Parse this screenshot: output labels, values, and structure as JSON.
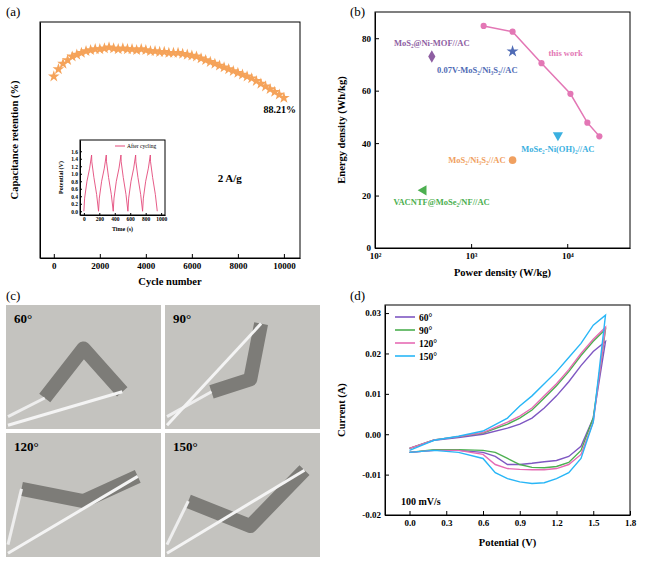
{
  "chart_data": [
    {
      "type": "scatter",
      "panel": "(a)",
      "x_label": "Cycle number",
      "y_label": "Capacitance retention (%)",
      "x": [
        0,
        200,
        400,
        600,
        800,
        1000,
        1200,
        1400,
        1600,
        1800,
        2000,
        2200,
        2400,
        2600,
        2800,
        3000,
        3200,
        3400,
        3600,
        3800,
        4000,
        4200,
        4400,
        4600,
        4800,
        5000,
        5200,
        5400,
        5600,
        5800,
        6000,
        6200,
        6400,
        6600,
        6800,
        7000,
        7200,
        7400,
        7600,
        7800,
        8000,
        8200,
        8400,
        8600,
        8800,
        9000,
        9200,
        9400,
        9600,
        9800,
        10000
      ],
      "values": [
        100,
        104,
        107,
        109,
        111,
        112,
        113,
        114,
        114.5,
        115,
        115,
        115.5,
        116,
        115.5,
        115,
        115.5,
        115,
        115,
        114.5,
        115,
        114.5,
        114,
        114,
        113.5,
        113.5,
        113,
        113,
        113,
        112.5,
        112,
        111.5,
        111,
        110,
        109,
        108,
        107,
        106,
        105,
        104,
        103,
        102,
        101,
        100,
        99,
        97.5,
        96,
        94.5,
        93,
        91.5,
        90,
        88.21
      ],
      "color": "#f5a35a",
      "marker": "star",
      "xlim": [
        -600,
        10700
      ],
      "xticks": [
        0,
        2000,
        4000,
        6000,
        8000,
        10000
      ],
      "ylim": [
        0,
        130
      ],
      "tick_labels": "x",
      "annotations": [
        "88.21%",
        "2 A/g"
      ]
    },
    {
      "type": "line",
      "x_label": "Time (s)",
      "y_label": "Potential (V)",
      "legend": "upper right",
      "x": [
        0,
        10,
        40,
        75,
        100,
        103,
        130,
        165,
        190,
        200,
        230,
        265,
        290,
        293,
        320,
        355,
        380,
        390,
        420,
        455,
        480,
        483,
        510,
        545,
        570,
        580,
        610,
        645,
        670,
        673,
        700,
        735,
        760,
        770,
        800,
        835,
        860,
        863,
        890,
        925,
        950
      ],
      "series": [
        {
          "name": "After cycling",
          "color": "#e34a7a",
          "values": [
            0,
            0.35,
            0.8,
            1.15,
            1.5,
            1.32,
            0.9,
            0.45,
            0,
            0.35,
            0.8,
            1.15,
            1.5,
            1.32,
            0.9,
            0.45,
            0,
            0.35,
            0.8,
            1.15,
            1.5,
            1.32,
            0.9,
            0.45,
            0,
            0.35,
            0.8,
            1.15,
            1.5,
            1.32,
            0.9,
            0.45,
            0,
            0.35,
            0.8,
            1.15,
            1.5,
            1.32,
            0.9,
            0.45,
            0
          ]
        }
      ],
      "xlim": [
        -50,
        1050
      ],
      "xticks": [
        0,
        200,
        400,
        600,
        800,
        1000
      ],
      "ylim": [
        -0.1,
        1.9
      ],
      "yticks": [
        {
          "value": 0,
          "label": "0.0"
        },
        0.2,
        0.4,
        0.6,
        0.8,
        {
          "value": 1,
          "label": "1.0"
        },
        1.2,
        1.4,
        1.6
      ]
    },
    {
      "type": "scatter",
      "panel": "(b)",
      "x_label": "Power density (W/kg)",
      "y_label": "Energy density (Wh/kg)",
      "log": "x",
      "series": [
        {
          "name": "this work",
          "type": "line",
          "color": "#e377b5",
          "marker": "circle",
          "x": [
            1350,
            2700,
            5400,
            10800,
            16200,
            21600
          ],
          "values": [
            84.7,
            82.5,
            70.5,
            58.8,
            47.8,
            42.6
          ]
        },
        {
          "name": "MoS₂@Ni-MOF//AC",
          "type": "scatter",
          "color": "#8e5ea2",
          "marker": "diamond",
          "x": [
            390
          ],
          "values": [
            73
          ]
        },
        {
          "name": "0.07V-MoS₂/Ni₃S₂//AC",
          "type": "scatter",
          "color": "#4f6bb5",
          "marker": "star",
          "x": [
            2700
          ],
          "values": [
            75
          ]
        },
        {
          "name": "MoSe₂-Ni(OH)₂//AC",
          "type": "scatter",
          "color": "#3ab0e0",
          "marker": "triangle-down",
          "x": [
            8000
          ],
          "values": [
            43
          ]
        },
        {
          "name": "MoS₂/Ni₃S₂//AC",
          "type": "scatter",
          "color": "#f0a060",
          "marker": "circle",
          "x": [
            2700
          ],
          "values": [
            33.5
          ]
        },
        {
          "name": "VACNTF@MoSe₂/NF//AC",
          "type": "scatter",
          "color": "#4caf50",
          "marker": "triangle-left",
          "x": [
            320
          ],
          "values": [
            22
          ]
        }
      ],
      "xlim": [
        100,
        45000
      ],
      "xticks": [
        {
          "value": 100,
          "label": "10²"
        },
        {
          "value": 1000,
          "label": "10³"
        },
        {
          "value": 10000,
          "label": "10⁴"
        }
      ],
      "ylim": [
        0,
        90
      ],
      "yticks": [
        0,
        20,
        40,
        60,
        80
      ]
    },
    {
      "type": "image",
      "panel": "(c)",
      "labels": [
        "60°",
        "90°",
        "120°",
        "150°"
      ]
    },
    {
      "type": "line",
      "panel": "(d)",
      "x_label": "Potential (V)",
      "y_label": "Current (A)",
      "legend": "upper left",
      "annotations": [
        "100 mV/s"
      ],
      "x": [
        0,
        0.2,
        0.4,
        0.6,
        0.8,
        0.9,
        1.0,
        1.1,
        1.2,
        1.3,
        1.4,
        1.5,
        1.6,
        1.6,
        1.5,
        1.4,
        1.3,
        1.2,
        1.1,
        1.0,
        0.9,
        0.8,
        0.7,
        0.6,
        0.4,
        0.2,
        0
      ],
      "series": [
        {
          "name": "60°",
          "color": "#7e57c2",
          "values": [
            -0.0035,
            -0.0015,
            -0.0008,
            0.0,
            0.0015,
            0.0025,
            0.004,
            0.0065,
            0.0095,
            0.013,
            0.017,
            0.0205,
            0.023,
            0.023,
            0.004,
            -0.003,
            -0.0055,
            -0.0065,
            -0.0068,
            -0.0072,
            -0.0075,
            -0.0075,
            -0.0055,
            -0.0045,
            -0.004,
            -0.004,
            -0.0045
          ]
        },
        {
          "name": "90°",
          "color": "#4caf50",
          "values": [
            -0.0035,
            -0.0014,
            -0.0006,
            0.0003,
            0.0025,
            0.004,
            0.006,
            0.009,
            0.012,
            0.0155,
            0.0195,
            0.023,
            0.026,
            0.026,
            0.004,
            -0.004,
            -0.007,
            -0.008,
            -0.0083,
            -0.0082,
            -0.0075,
            -0.006,
            -0.0045,
            -0.004,
            -0.0038,
            -0.0038,
            -0.0045
          ]
        },
        {
          "name": "120°",
          "color": "#e66bb4",
          "values": [
            -0.0035,
            -0.0014,
            -0.0006,
            0.0004,
            0.003,
            0.0045,
            0.0065,
            0.0095,
            0.0125,
            0.016,
            0.02,
            0.0235,
            0.0265,
            0.0265,
            0.003,
            -0.005,
            -0.0075,
            -0.0085,
            -0.0088,
            -0.0088,
            -0.0087,
            -0.0085,
            -0.0075,
            -0.005,
            -0.004,
            -0.004,
            -0.0045
          ]
        },
        {
          "name": "150°",
          "color": "#29b6f6",
          "values": [
            -0.004,
            -0.0015,
            -0.0005,
            0.0008,
            0.004,
            0.007,
            0.0095,
            0.0125,
            0.0155,
            0.019,
            0.0225,
            0.027,
            0.0295,
            0.0295,
            0.003,
            -0.006,
            -0.0095,
            -0.011,
            -0.012,
            -0.0122,
            -0.0118,
            -0.011,
            -0.0095,
            -0.006,
            -0.0045,
            -0.004,
            -0.0045
          ]
        }
      ],
      "xlim": [
        -0.2,
        1.8
      ],
      "xticks": [
        {
          "value": 0,
          "label": "0.0"
        },
        0.3,
        0.6,
        0.9,
        1.2,
        1.5,
        1.8
      ],
      "ylim": [
        -0.02,
        0.032
      ],
      "yticks": [
        -0.02,
        -0.01,
        {
          "value": 0,
          "label": "0.00"
        },
        0.01,
        0.02,
        0.03
      ]
    }
  ]
}
